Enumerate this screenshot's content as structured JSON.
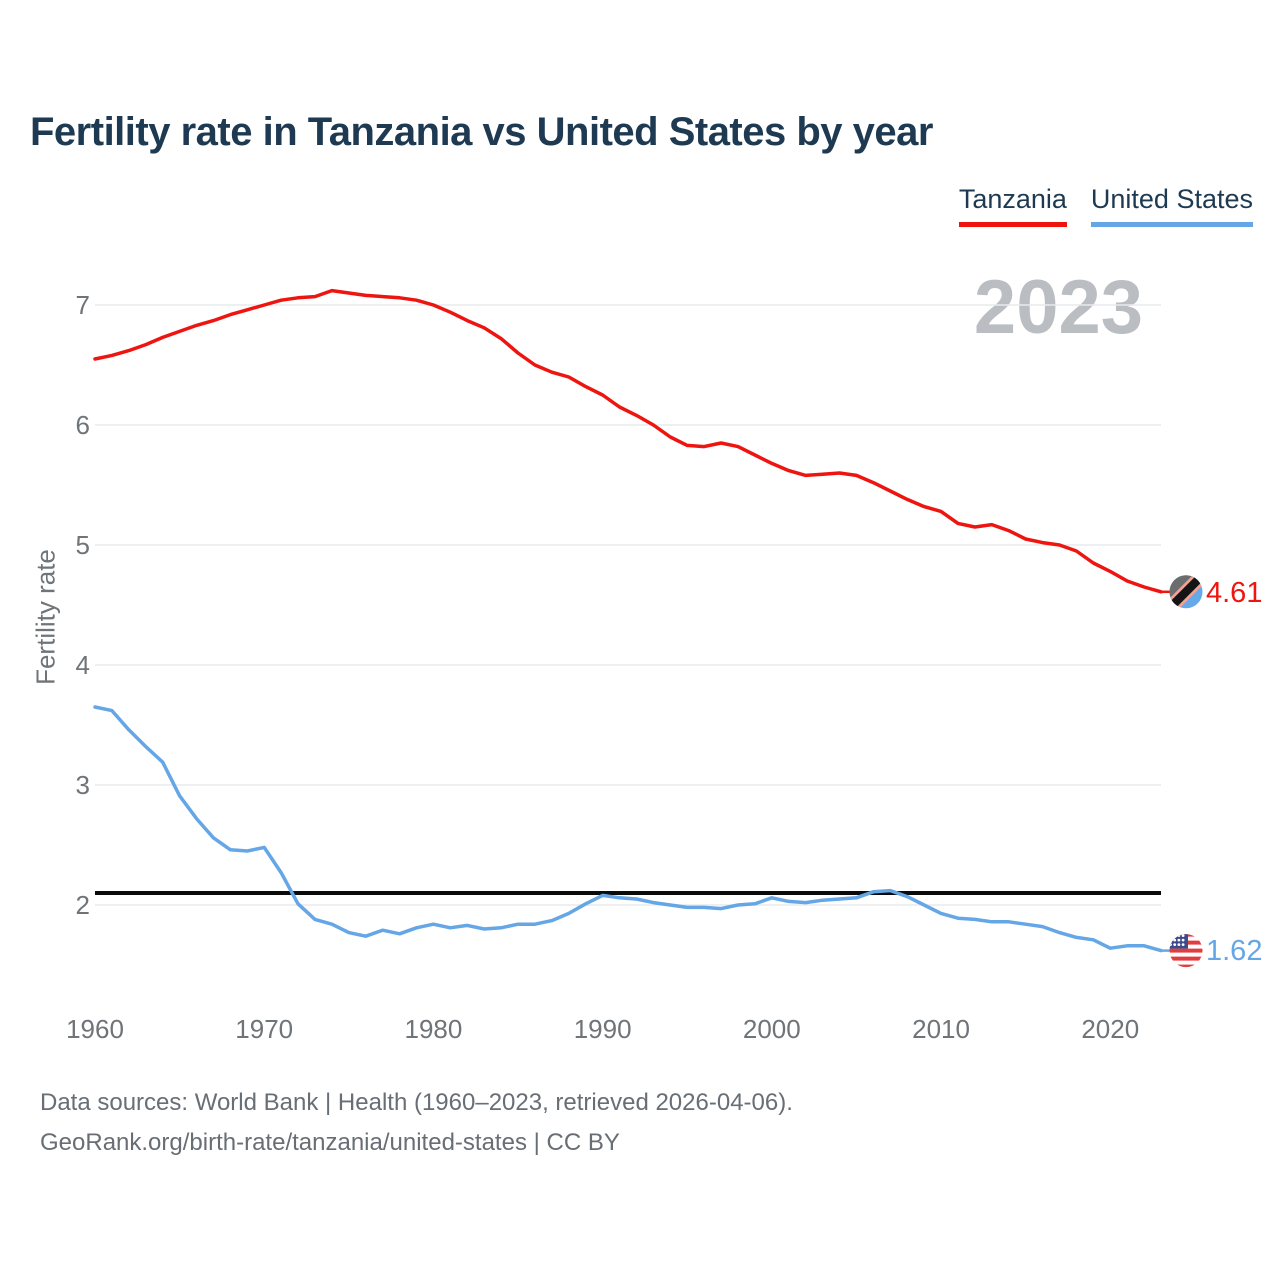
{
  "header": {
    "title": "Fertility rate in Tanzania vs United States by year"
  },
  "legend": [
    {
      "label": "Tanzania",
      "color": "#ee1510"
    },
    {
      "label": "United States",
      "color": "#64a6e6"
    }
  ],
  "watermark_year": "2023",
  "colors": {
    "title_text": "#1e3a52",
    "axis_text": "#6f7479",
    "grid": "#e9eaec",
    "watermark": "#babec2",
    "replacement_line": "#0a0a0a",
    "footer_text": "#686e75"
  },
  "chart_data": {
    "type": "line",
    "title": "Fertility rate in Tanzania vs United States by year",
    "xlabel": "",
    "ylabel": "Fertility rate",
    "grid": "horizontal",
    "legend_position": "top-right",
    "x_ticks": [
      1960,
      1970,
      1980,
      1990,
      2000,
      2010,
      2020
    ],
    "y_ticks": [
      7,
      6,
      5,
      4,
      3,
      2
    ],
    "xlim": [
      1960,
      2023
    ],
    "ylim": [
      1.45,
      7.35
    ],
    "x": [
      1960,
      1961,
      1962,
      1963,
      1964,
      1965,
      1966,
      1967,
      1968,
      1969,
      1970,
      1971,
      1972,
      1973,
      1974,
      1975,
      1976,
      1977,
      1978,
      1979,
      1980,
      1981,
      1982,
      1983,
      1984,
      1985,
      1986,
      1987,
      1988,
      1989,
      1990,
      1991,
      1992,
      1993,
      1994,
      1995,
      1996,
      1997,
      1998,
      1999,
      2000,
      2001,
      2002,
      2003,
      2004,
      2005,
      2006,
      2007,
      2008,
      2009,
      2010,
      2011,
      2012,
      2013,
      2014,
      2015,
      2016,
      2017,
      2018,
      2019,
      2020,
      2021,
      2022,
      2023
    ],
    "series": [
      {
        "name": "Tanzania",
        "color": "#ee1510",
        "end_label": "4.61",
        "flag": "tanzania",
        "values": [
          6.55,
          6.58,
          6.62,
          6.67,
          6.73,
          6.78,
          6.83,
          6.87,
          6.92,
          6.96,
          7.0,
          7.04,
          7.06,
          7.07,
          7.12,
          7.1,
          7.08,
          7.07,
          7.06,
          7.04,
          7.0,
          6.94,
          6.87,
          6.81,
          6.72,
          6.6,
          6.5,
          6.44,
          6.4,
          6.32,
          6.25,
          6.15,
          6.08,
          6.0,
          5.9,
          5.83,
          5.82,
          5.85,
          5.82,
          5.75,
          5.68,
          5.62,
          5.58,
          5.59,
          5.6,
          5.58,
          5.52,
          5.45,
          5.38,
          5.32,
          5.28,
          5.18,
          5.15,
          5.17,
          5.12,
          5.05,
          5.02,
          5.0,
          4.95,
          4.85,
          4.78,
          4.7,
          4.65,
          4.61
        ]
      },
      {
        "name": "United States",
        "color": "#64a6e6",
        "end_label": "1.62",
        "flag": "united-states",
        "values": [
          3.65,
          3.62,
          3.46,
          3.32,
          3.19,
          2.91,
          2.72,
          2.56,
          2.46,
          2.45,
          2.48,
          2.27,
          2.01,
          1.88,
          1.84,
          1.77,
          1.74,
          1.79,
          1.76,
          1.81,
          1.84,
          1.81,
          1.83,
          1.8,
          1.81,
          1.84,
          1.84,
          1.87,
          1.93,
          2.01,
          2.08,
          2.06,
          2.05,
          2.02,
          2.0,
          1.98,
          1.98,
          1.97,
          2.0,
          2.01,
          2.06,
          2.03,
          2.02,
          2.04,
          2.05,
          2.06,
          2.11,
          2.12,
          2.07,
          2.0,
          1.93,
          1.89,
          1.88,
          1.86,
          1.86,
          1.84,
          1.82,
          1.77,
          1.73,
          1.71,
          1.64,
          1.66,
          1.66,
          1.62
        ]
      }
    ],
    "annotations": {
      "replacement_rate_line": 2.1
    }
  },
  "end_labels": {
    "tanzania": "4.61",
    "united_states": "1.62"
  },
  "footer": {
    "line1": "Data sources: World Bank | Health (1960–2023, retrieved 2026-04-06).",
    "line2": "GeoRank.org/birth-rate/tanzania/united-states | CC BY"
  }
}
